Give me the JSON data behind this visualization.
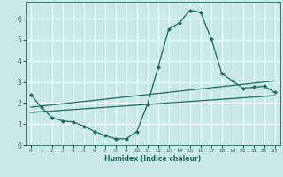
{
  "xlabel": "Humidex (Indice chaleur)",
  "xlim": [
    -0.5,
    23.5
  ],
  "ylim": [
    0,
    6.8
  ],
  "xticks": [
    0,
    1,
    2,
    3,
    4,
    5,
    6,
    7,
    8,
    9,
    10,
    11,
    12,
    13,
    14,
    15,
    16,
    17,
    18,
    19,
    20,
    21,
    22,
    23
  ],
  "yticks": [
    0,
    1,
    2,
    3,
    4,
    5,
    6
  ],
  "bg_color": "#c9e8e6",
  "line_color": "#1a6b5a",
  "grid_color": "#ffffff",
  "line1_x": [
    0,
    1,
    2,
    3,
    4,
    5,
    6,
    7,
    8,
    9,
    10,
    11,
    12,
    13,
    14,
    15,
    16,
    17,
    18,
    19,
    20,
    21,
    22,
    23
  ],
  "line1_y": [
    2.4,
    1.8,
    1.3,
    1.15,
    1.1,
    0.9,
    0.65,
    0.45,
    0.3,
    0.3,
    0.65,
    1.95,
    3.7,
    5.5,
    5.8,
    6.4,
    6.3,
    5.05,
    3.4,
    3.05,
    2.7,
    2.75,
    2.8,
    2.5
  ],
  "line2_x": [
    0,
    23
  ],
  "line2_y": [
    1.55,
    2.35
  ],
  "line3_x": [
    0,
    23
  ],
  "line3_y": [
    1.8,
    3.05
  ]
}
